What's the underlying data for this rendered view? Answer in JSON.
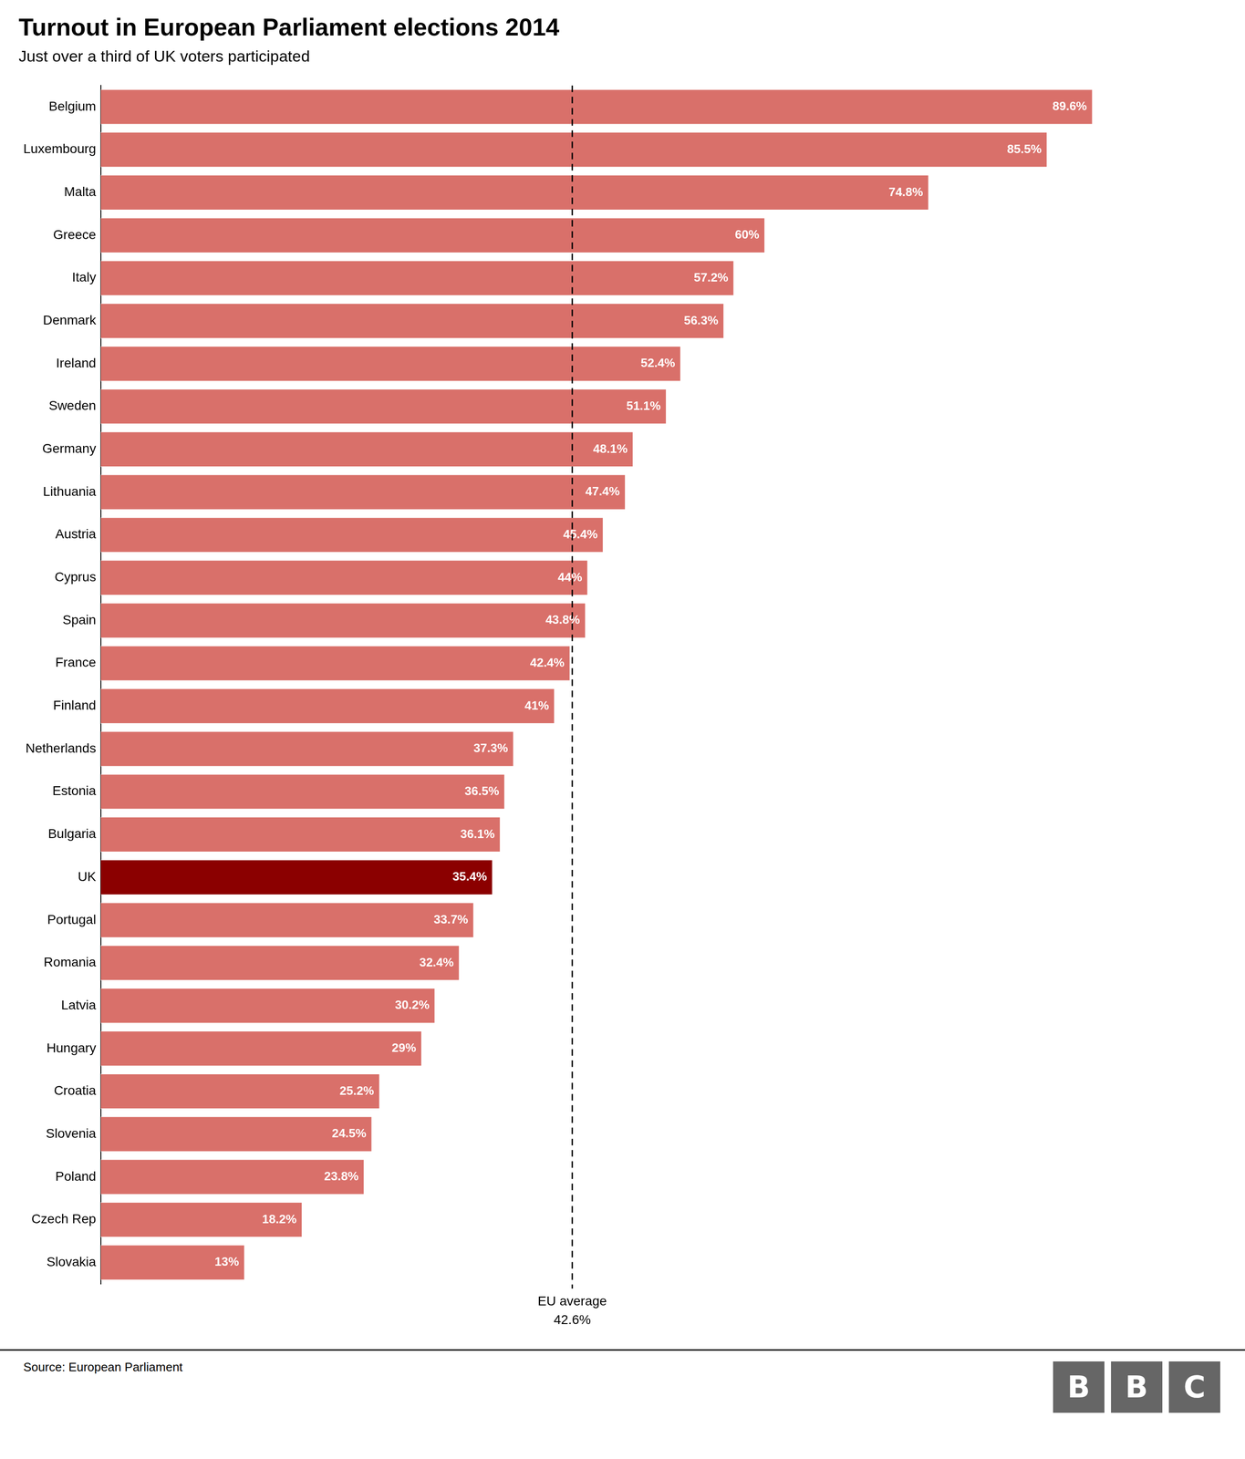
{
  "chart_data": {
    "type": "bar",
    "orientation": "horizontal",
    "title": "Turnout in European Parliament elections 2014",
    "subtitle": "Just over a third of UK voters participated",
    "source": "Source: European Parliament",
    "logo": "BBC",
    "categories": [
      "Belgium",
      "Luxembourg",
      "Malta",
      "Greece",
      "Italy",
      "Denmark",
      "Ireland",
      "Sweden",
      "Germany",
      "Lithuania",
      "Austria",
      "Cyprus",
      "Spain",
      "France",
      "Finland",
      "Netherlands",
      "Estonia",
      "Bulgaria",
      "UK",
      "Portugal",
      "Romania",
      "Latvia",
      "Hungary",
      "Croatia",
      "Slovenia",
      "Poland",
      "Czech Rep",
      "Slovakia"
    ],
    "values": [
      89.6,
      85.5,
      74.8,
      60.0,
      57.2,
      56.3,
      52.4,
      51.1,
      48.1,
      47.4,
      45.4,
      44.0,
      43.8,
      42.4,
      41.0,
      37.3,
      36.5,
      36.1,
      35.4,
      33.7,
      32.4,
      30.2,
      29.0,
      25.2,
      24.5,
      23.8,
      18.2,
      13.0
    ],
    "value_labels": [
      "89.6%",
      "85.5%",
      "74.8%",
      "60%",
      "57.2%",
      "56.3%",
      "52.4%",
      "51.1%",
      "48.1%",
      "47.4%",
      "45.4%",
      "44%",
      "43.8%",
      "42.4%",
      "41%",
      "37.3%",
      "36.5%",
      "36.1%",
      "35.4%",
      "33.7%",
      "32.4%",
      "30.2%",
      "29%",
      "25.2%",
      "24.5%",
      "23.8%",
      "18.2%",
      "13%"
    ],
    "colors": [
      "#d9706a",
      "#d9706a",
      "#d9706a",
      "#d9706a",
      "#d9706a",
      "#d9706a",
      "#d9706a",
      "#d9706a",
      "#d9706a",
      "#d9706a",
      "#d9706a",
      "#d9706a",
      "#d9706a",
      "#d9706a",
      "#d9706a",
      "#d9706a",
      "#d9706a",
      "#d9706a",
      "#8b0000",
      "#d9706a",
      "#d9706a",
      "#d9706a",
      "#d9706a",
      "#d9706a",
      "#d9706a",
      "#d9706a",
      "#d9706a",
      "#d9706a"
    ],
    "xlim": [
      0,
      100
    ],
    "data_labels": true,
    "grid": false,
    "tick_labels": "y",
    "annotations": [
      {
        "value": 42.6,
        "text": "EU average",
        "label": "42.6%"
      }
    ]
  }
}
